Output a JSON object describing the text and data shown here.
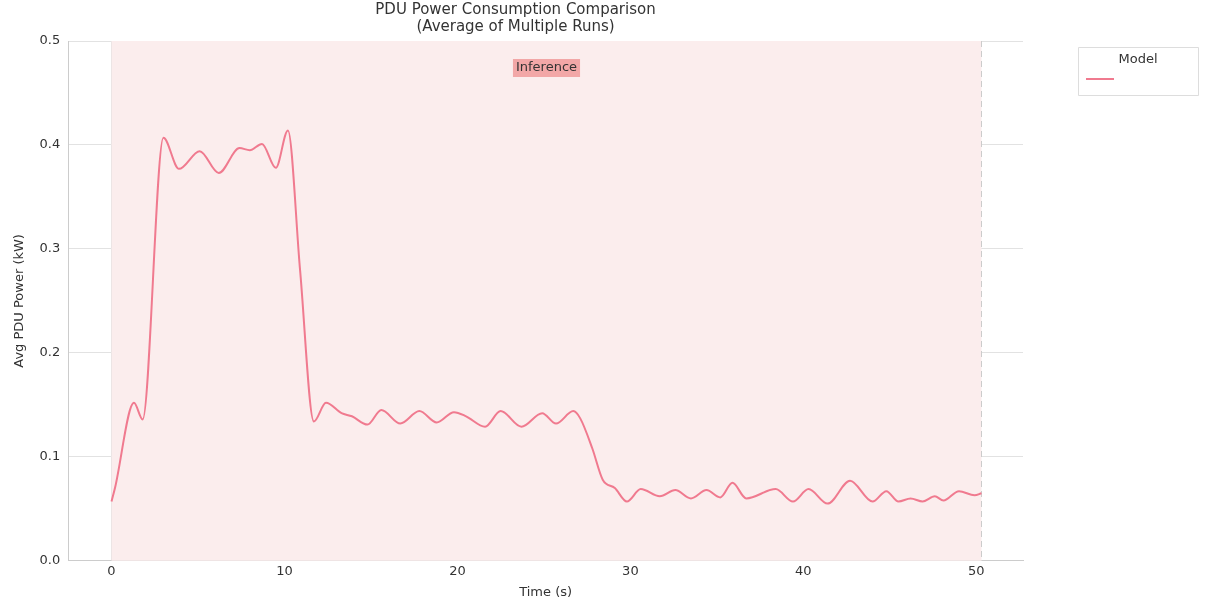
{
  "chart_data": {
    "type": "line",
    "title": "PDU Power Consumption Comparison\n(Average of Multiple Runs)",
    "xlabel": "Time (s)",
    "ylabel": "Avg PDU Power (kW)",
    "legend_title": "Model",
    "series": [
      {
        "color": "#f07a8f",
        "x": [
          0,
          0.2,
          1.3,
          1.8,
          3.0,
          3.9,
          5.1,
          6.2,
          7.4,
          8.0,
          8.7,
          9.5,
          10.2,
          10.9,
          11.7,
          12.4,
          13.3,
          13.9,
          14.8,
          15.6,
          16.7,
          17.8,
          18.8,
          19.8,
          20.5,
          21.6,
          22.5,
          23.7,
          24.9,
          25.7,
          26.7,
          27.1,
          27.8,
          28.4,
          29.1,
          29.8,
          30.6,
          31.7,
          32.6,
          33.5,
          34.4,
          35.2,
          35.9,
          36.7,
          38.4,
          39.4,
          40.3,
          41.4,
          42.7,
          44.0,
          44.8,
          45.5,
          46.2,
          46.9,
          47.6,
          48.1,
          49.0,
          49.9,
          50.3
        ],
        "values": [
          0.057,
          0.07,
          0.152,
          0.136,
          0.407,
          0.377,
          0.394,
          0.373,
          0.397,
          0.395,
          0.401,
          0.378,
          0.414,
          0.28,
          0.134,
          0.152,
          0.142,
          0.139,
          0.131,
          0.145,
          0.132,
          0.144,
          0.133,
          0.143,
          0.139,
          0.129,
          0.144,
          0.129,
          0.142,
          0.132,
          0.144,
          0.137,
          0.108,
          0.078,
          0.07,
          0.057,
          0.069,
          0.062,
          0.068,
          0.06,
          0.068,
          0.061,
          0.075,
          0.06,
          0.069,
          0.057,
          0.069,
          0.055,
          0.077,
          0.057,
          0.067,
          0.057,
          0.06,
          0.057,
          0.062,
          0.058,
          0.067,
          0.063,
          0.065
        ]
      }
    ],
    "bands": [
      {
        "axis": "x",
        "from": 0,
        "to": 50.3,
        "label": "Inference",
        "color": "#fbeded"
      }
    ],
    "xlim": [
      -2.5,
      52.7
    ],
    "xticks": [
      0,
      10,
      20,
      30,
      40,
      50
    ],
    "ylim": [
      0,
      0.5
    ],
    "yticks": [
      {
        "value": 0,
        "label": "0.0"
      },
      0.1,
      0.2,
      0.3,
      0.4,
      0.5
    ],
    "ref_lines": [
      {
        "axis": "x",
        "value": 50.3,
        "color": "#cccccc",
        "line_style": "dashed"
      }
    ],
    "grid": true,
    "legend": "top right",
    "marker": "none",
    "line_style": "solid"
  }
}
